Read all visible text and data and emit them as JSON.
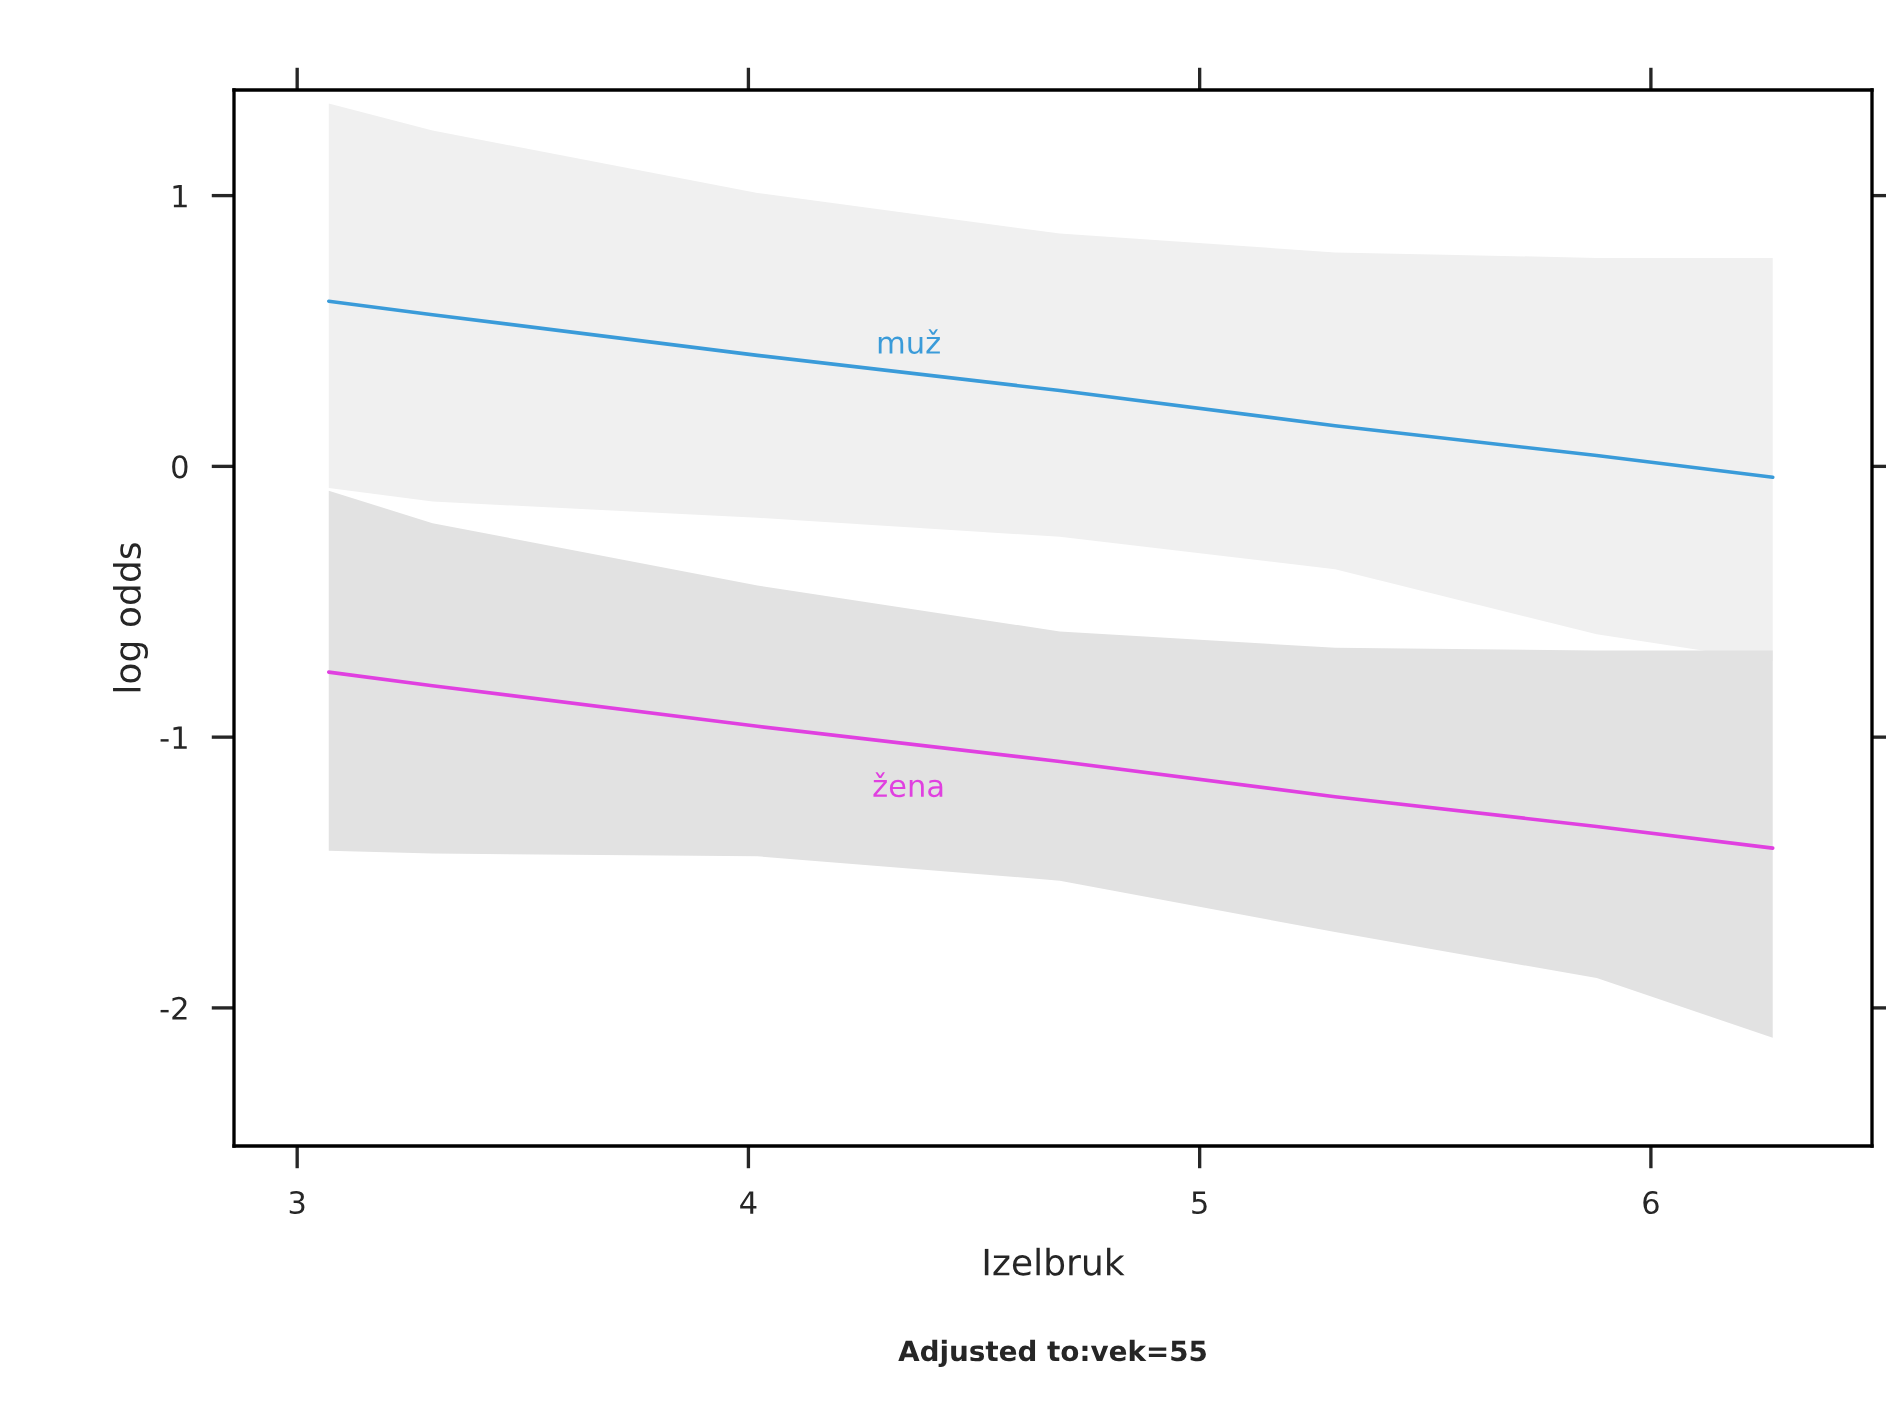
{
  "chart_data": {
    "type": "line",
    "xlabel": "Izelbruk",
    "ylabel": "log odds",
    "annotations": [
      "Adjusted to:vek=55"
    ],
    "xlim": [
      2.86,
      6.49
    ],
    "ylim": [
      -2.51,
      1.39
    ],
    "xticks": [
      3,
      4,
      5,
      6
    ],
    "yticks": [
      -2,
      -1,
      0,
      1
    ],
    "grid": false,
    "legend": false,
    "marker": "none",
    "line_style": "solid",
    "series": [
      {
        "name": "muž",
        "color": "#3a9bd9",
        "x": [
          3.07,
          3.3,
          4.02,
          4.69,
          5.3,
          5.88,
          6.27
        ],
        "values": [
          0.61,
          0.56,
          0.41,
          0.28,
          0.15,
          0.04,
          -0.04
        ],
        "lower": [
          -0.08,
          -0.13,
          -0.19,
          -0.26,
          -0.38,
          -0.62,
          -0.72
        ],
        "upper": [
          1.34,
          1.24,
          1.01,
          0.86,
          0.79,
          0.77,
          0.77
        ]
      },
      {
        "name": "žena",
        "color": "#e040e0",
        "x": [
          3.07,
          3.3,
          4.02,
          4.69,
          5.3,
          5.88,
          6.27
        ],
        "values": [
          -0.76,
          -0.81,
          -0.96,
          -1.09,
          -1.22,
          -1.33,
          -1.41
        ],
        "lower": [
          -1.42,
          -1.43,
          -1.44,
          -1.53,
          -1.72,
          -1.89,
          -2.11
        ],
        "upper": [
          -0.09,
          -0.21,
          -0.44,
          -0.61,
          -0.67,
          -0.68,
          -0.68
        ]
      }
    ]
  }
}
